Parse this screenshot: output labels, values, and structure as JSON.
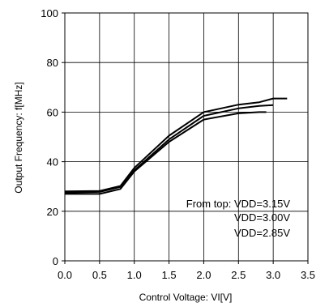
{
  "chart_data": {
    "type": "line",
    "title": "",
    "xlabel": "Control Voltage: VI[V]",
    "ylabel": "Output Frequency: f[MHz]",
    "xlim": [
      0,
      3.5
    ],
    "ylim": [
      0,
      100
    ],
    "x_ticks": [
      0.0,
      0.5,
      1.0,
      1.5,
      2.0,
      2.5,
      3.0,
      3.5
    ],
    "x_tick_labels": [
      "0.0",
      "0.5",
      "1.0",
      "1.5",
      "2.0",
      "2.5",
      "3.0",
      "3.5"
    ],
    "y_ticks": [
      0,
      20,
      40,
      60,
      80,
      100
    ],
    "y_tick_labels": [
      "0",
      "20",
      "40",
      "60",
      "80",
      "100"
    ],
    "grid": true,
    "legend": "none",
    "line_color": "#000000",
    "annotations": [
      "From top: VDD=3.15V",
      "VDD=3.00V",
      "VDD=2.85V"
    ],
    "series": [
      {
        "x": [
          0.0,
          0.5,
          0.8,
          1.0,
          1.5,
          2.0,
          2.5,
          2.8,
          3.0,
          3.2
        ],
        "y": [
          28.0,
          28.2,
          30.2,
          37.5,
          50.5,
          60.0,
          63.0,
          64.0,
          65.5,
          65.5
        ]
      },
      {
        "x": [
          0.0,
          0.5,
          0.8,
          1.0,
          1.5,
          2.0,
          2.5,
          2.8,
          3.0
        ],
        "y": [
          27.5,
          27.8,
          29.8,
          36.5,
          49.0,
          58.5,
          61.5,
          62.5,
          62.8
        ]
      },
      {
        "x": [
          0.0,
          0.5,
          0.8,
          1.0,
          1.5,
          2.0,
          2.5,
          2.8,
          2.9
        ],
        "y": [
          27.0,
          27.0,
          29.0,
          36.0,
          48.0,
          57.0,
          59.5,
          60.0,
          60.0
        ]
      }
    ]
  }
}
